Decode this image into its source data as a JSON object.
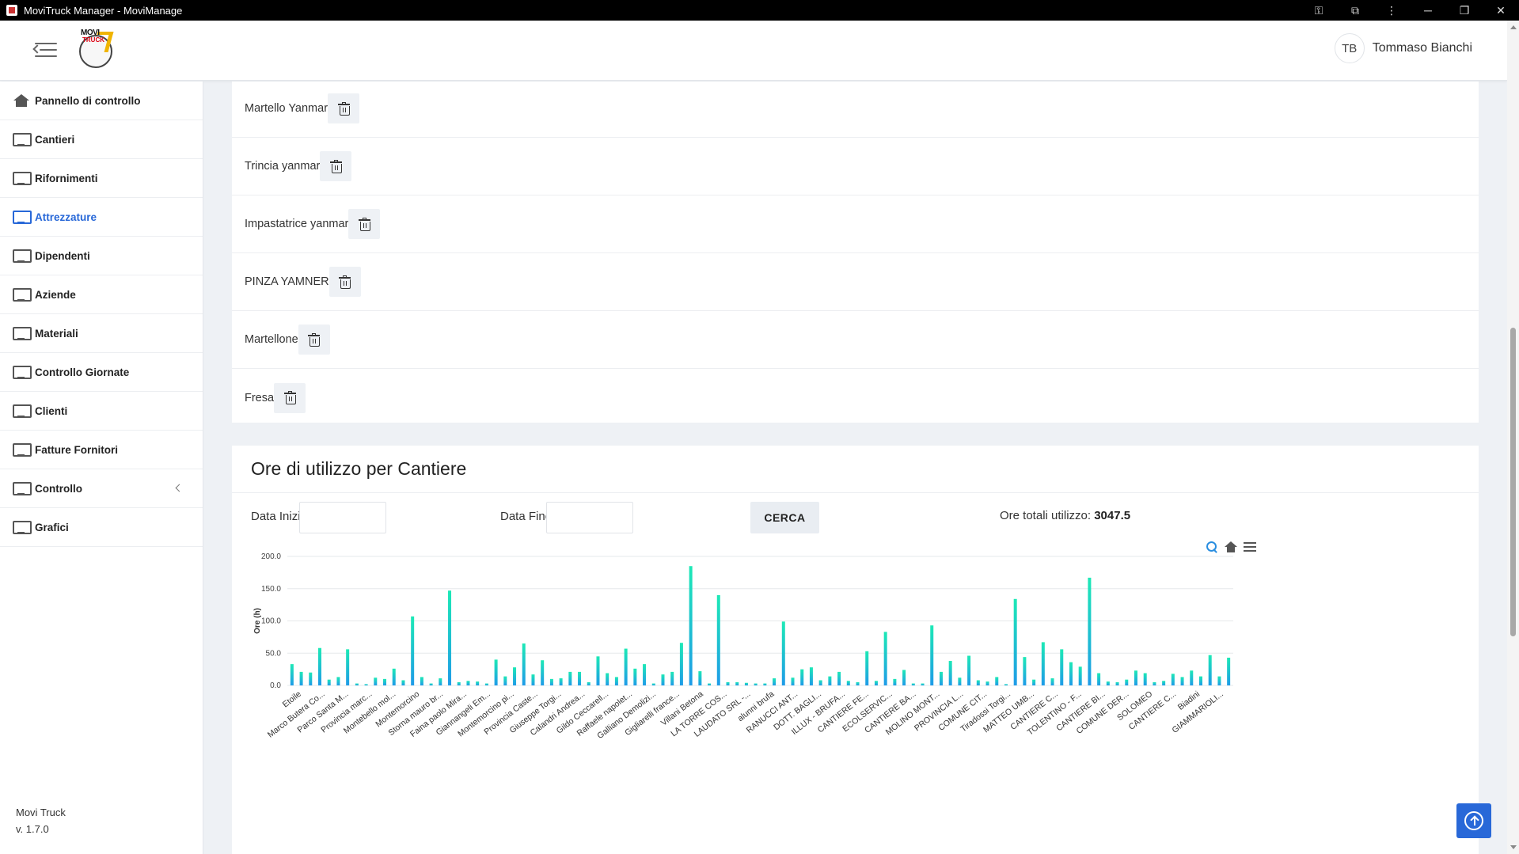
{
  "window": {
    "title": "MoviTruck Manager - MoviManage"
  },
  "header": {
    "logo_text_top": "MOVI",
    "logo_text_bottom": "TRUCK",
    "user_initials": "TB",
    "user_name": "Tommaso Bianchi"
  },
  "sidebar": {
    "items": [
      {
        "label": "Pannello di controllo",
        "icon": "home-icon",
        "active": false
      },
      {
        "label": "Cantieri",
        "icon": "monitor-icon",
        "active": false
      },
      {
        "label": "Rifornimenti",
        "icon": "monitor-icon",
        "active": false
      },
      {
        "label": "Attrezzature",
        "icon": "monitor-icon",
        "active": true
      },
      {
        "label": "Dipendenti",
        "icon": "monitor-icon",
        "active": false
      },
      {
        "label": "Aziende",
        "icon": "monitor-icon",
        "active": false
      },
      {
        "label": "Materiali",
        "icon": "monitor-icon",
        "active": false
      },
      {
        "label": "Controllo Giornate",
        "icon": "monitor-icon",
        "active": false
      },
      {
        "label": "Clienti",
        "icon": "monitor-icon",
        "active": false
      },
      {
        "label": "Fatture Fornitori",
        "icon": "monitor-icon",
        "active": false
      },
      {
        "label": "Controllo",
        "icon": "monitor-icon",
        "active": false
      },
      {
        "label": "Grafici",
        "icon": "monitor-icon",
        "active": false
      }
    ],
    "app_name": "Movi Truck",
    "version": "v. 1.7.0"
  },
  "equipment": {
    "items": [
      "Martello Yanmar",
      "Trincia yanmar",
      "Impastatrice yanmar",
      "PINZA YAMNER",
      "Martellone",
      "Fresa"
    ]
  },
  "usage": {
    "title": "Ore di utilizzo per Cantiere",
    "start_label": "Data Inizio:",
    "end_label": "Data Fine:",
    "start_value": "",
    "end_value": "",
    "search_label": "CERCA",
    "total_label": "Ore totali utilizzo:",
    "total_value": "3047.5"
  },
  "chart_data": {
    "type": "bar",
    "ylabel": "Ore (h)",
    "ylim": [
      0,
      200
    ],
    "yticks": [
      "0.0",
      "50.0",
      "100.0",
      "150.0",
      "200.0"
    ],
    "grid": true,
    "colors": {
      "bar_top": "#1de9b6",
      "bar_bottom": "#1e9be8"
    },
    "category_labels": [
      "Etoile",
      "Marco Butera Co...",
      "Parco Santa M...",
      "Provincia marc...",
      "Montebello mol...",
      "Montemorcino",
      "Storna mauro br...",
      "Faina paolo Mira...",
      "Giannangeli Em...",
      "Montemorcino pi...",
      "Provincia Caste...",
      "Giuseppe Torgi...",
      "Calandri Andrea...",
      "Gildo Ceccarell...",
      "Raffaele napolet...",
      "Galliano Demolizi...",
      "Gigliarelli france...",
      "Villani Betona",
      "LA TORRE COS...",
      "LAUDATO SRL -...",
      "alunni brufa",
      "RANUCCI ANT...",
      "DOTT. BAGLI...",
      "ILLUX - BRUFA...",
      "CANTIERE FE...",
      "ECOLSERVIC...",
      "CANTIERE BA...",
      "MOLINO MONT...",
      "PROVINCIA L...",
      "COMUNE CIT...",
      "Tiradossi Torgi...",
      "MATTEO UMB...",
      "CANTIERE C...",
      "TOLENTINO - F...",
      "CANTIERE BI...",
      "COMUNE DER...",
      "SOLOMEO",
      "CANTIERE C...",
      "Biadini",
      "GIAMMARIOLI..."
    ],
    "values": [
      33,
      21,
      20,
      58,
      9,
      13,
      56,
      3,
      2,
      12,
      10,
      26,
      8,
      107,
      13,
      3,
      11,
      147,
      5,
      7,
      6,
      3,
      40,
      14,
      28,
      65,
      17,
      39,
      10,
      11,
      21,
      21,
      5,
      45,
      19,
      13,
      57,
      26,
      33,
      3,
      17,
      21,
      66,
      185,
      22,
      3,
      140,
      5,
      5,
      4,
      3,
      3,
      11,
      99,
      12,
      25,
      28,
      8,
      14,
      21,
      7,
      5,
      53,
      7,
      83,
      10,
      24,
      3,
      3,
      93,
      21,
      38,
      12,
      46,
      8,
      6,
      13,
      2,
      134,
      44,
      9,
      67,
      11,
      56,
      36,
      29,
      167,
      19,
      6,
      5,
      9,
      23,
      19,
      5,
      7,
      18,
      13,
      23,
      14,
      47,
      14,
      43
    ]
  }
}
